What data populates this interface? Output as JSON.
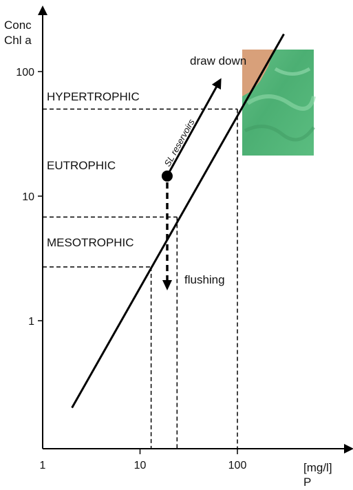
{
  "chart_data": {
    "type": "line",
    "scale": {
      "x": "log",
      "y": "log"
    },
    "xlim": [
      1,
      400
    ],
    "ylim": [
      0.1,
      250
    ],
    "ylabel_line1": "Conc",
    "ylabel_line2": "Chl a",
    "xlabel_unit": "[mg/l]",
    "xlabel": "P",
    "x_ticks": [
      {
        "value": 1,
        "label": "1"
      },
      {
        "value": 10,
        "label": "10"
      },
      {
        "value": 100,
        "label": "100"
      }
    ],
    "y_ticks": [
      {
        "value": 1,
        "label": "1"
      },
      {
        "value": 10,
        "label": "10"
      },
      {
        "value": 100,
        "label": "100"
      }
    ],
    "series": [
      {
        "points": [
          {
            "x": 2,
            "y": 0.2
          },
          {
            "x": 300,
            "y": 200
          }
        ]
      }
    ],
    "zones": [
      {
        "label": "HYPERTROPHIC",
        "threshold_y": 50,
        "threshold_x": 100
      },
      {
        "label": "EUTROPHIC"
      },
      {
        "label": "MESOTROPHIC",
        "threshold_y": 6.8,
        "threshold_x": 24
      },
      {
        "label": "",
        "threshold_y": 2.7,
        "threshold_x": 13
      }
    ],
    "reservoir": {
      "label": "SL reservoirs",
      "x": 19,
      "y": 14.5
    },
    "annotations": {
      "draw_down": "draw down",
      "flushing": "flushing"
    },
    "photo": {
      "description_icon": "algae-bloom-photo"
    },
    "grid": false,
    "legend": "none"
  }
}
